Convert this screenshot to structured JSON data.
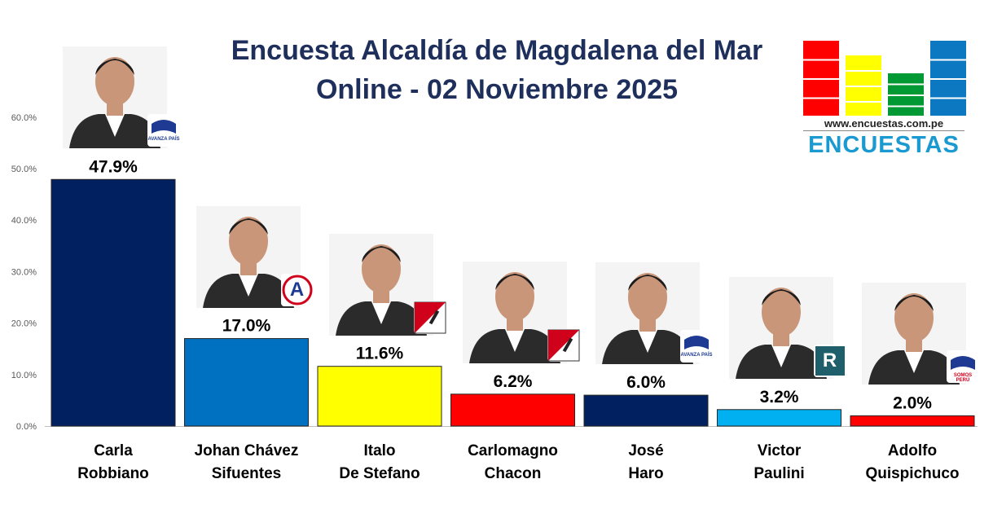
{
  "title_line1": "Encuesta Alcaldía de Magdalena del Mar",
  "title_line2": "Online - 02 Noviembre 2025",
  "logo": {
    "url_text": "www.encuestas.com.pe",
    "word": "ENCUESTAS",
    "colors": [
      "#ff0000",
      "#ffff00",
      "#009933",
      "#0b78c1"
    ]
  },
  "party_marks": [
    "AVANZA PAÍS",
    "A",
    "",
    "",
    "AVANZA PAÍS",
    "R",
    "SOMOS PERÚ"
  ],
  "chart_data": {
    "type": "bar",
    "title": "Encuesta Alcaldía de Magdalena del Mar",
    "subtitle": "Online - 02 Noviembre 2025",
    "categories": [
      [
        "Carla",
        "Robbiano"
      ],
      [
        "Johan Chávez",
        "Sifuentes"
      ],
      [
        "Italo",
        "De Stefano"
      ],
      [
        "Carlomagno",
        "Chacon"
      ],
      [
        "José",
        "Haro"
      ],
      [
        "Victor",
        "Paulini"
      ],
      [
        "Adolfo",
        "Quispichuco"
      ]
    ],
    "values": [
      47.9,
      17.0,
      11.6,
      6.2,
      6.0,
      3.2,
      2.0
    ],
    "value_labels": [
      "47.9%",
      "17.0%",
      "11.6%",
      "6.2%",
      "6.0%",
      "3.2%",
      "2.0%"
    ],
    "colors": [
      "#002060",
      "#0070c0",
      "#ffff00",
      "#ff0000",
      "#002060",
      "#00b0f0",
      "#ff0000"
    ],
    "ylim": [
      0,
      60
    ],
    "yticks": [
      "0.0%",
      "10.0%",
      "20.0%",
      "30.0%",
      "40.0%",
      "50.0%",
      "60.0%"
    ],
    "grid": false,
    "legend": "none"
  }
}
